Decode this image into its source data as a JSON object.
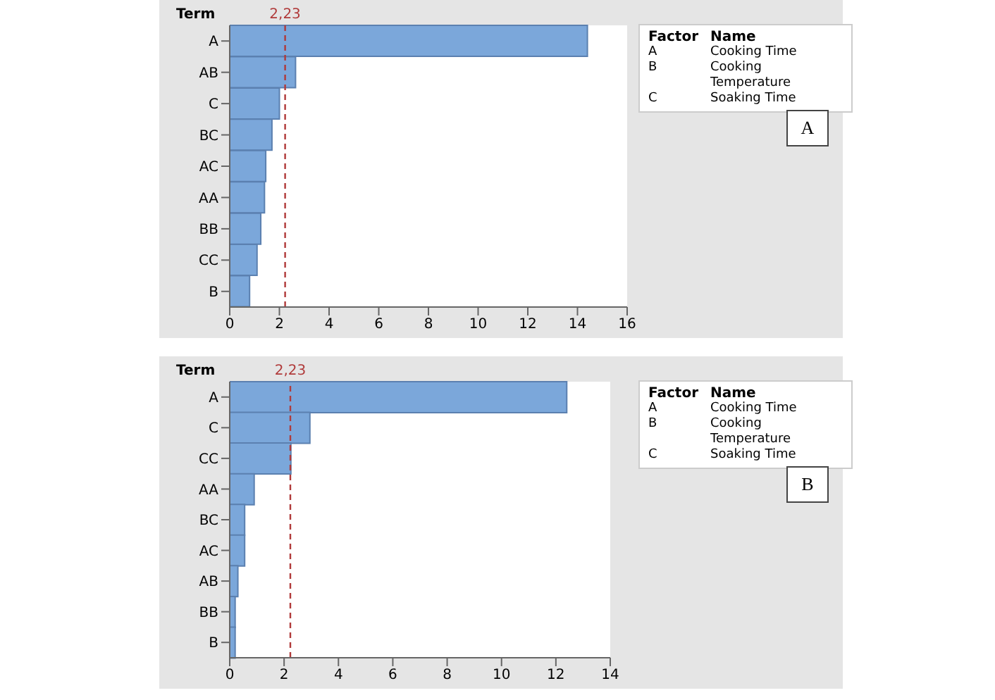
{
  "chart_data": [
    {
      "type": "bar",
      "orientation": "horizontal",
      "ylabel": "Term",
      "categories": [
        "A",
        "AB",
        "C",
        "BC",
        "AC",
        "AA",
        "BB",
        "CC",
        "B"
      ],
      "values": [
        14.4,
        2.65,
        2.0,
        1.7,
        1.45,
        1.4,
        1.25,
        1.1,
        0.8
      ],
      "color": "#7ba7da",
      "xlim": [
        0,
        16
      ],
      "xticks": [
        0,
        2,
        4,
        6,
        8,
        10,
        12,
        14,
        16
      ],
      "grid": false,
      "legend": false,
      "ref_lines": [
        {
          "axis": "x",
          "value": 2.23,
          "label": "2,23",
          "color": "#b03a3a",
          "line_style": "dashed"
        }
      ],
      "annotations": [
        "Factor",
        "Name",
        "A",
        "Cooking Time",
        "B",
        "Cooking Temperature",
        "C",
        "Soaking Time",
        "A"
      ]
    },
    {
      "type": "bar",
      "orientation": "horizontal",
      "ylabel": "Term",
      "categories": [
        "A",
        "C",
        "CC",
        "AA",
        "BC",
        "AC",
        "AB",
        "BB",
        "B"
      ],
      "values": [
        12.4,
        2.95,
        2.25,
        0.9,
        0.55,
        0.55,
        0.3,
        0.2,
        0.2
      ],
      "color": "#7ba7da",
      "xlim": [
        0,
        14
      ],
      "xticks": [
        0,
        2,
        4,
        6,
        8,
        10,
        12,
        14
      ],
      "grid": false,
      "legend": false,
      "ref_lines": [
        {
          "axis": "x",
          "value": 2.23,
          "label": "2,23",
          "color": "#b03a3a",
          "line_style": "dashed"
        }
      ],
      "annotations": [
        "Factor",
        "Name",
        "A",
        "Cooking Time",
        "B",
        "Cooking Temperature",
        "C",
        "Soaking Time",
        "B"
      ]
    }
  ]
}
